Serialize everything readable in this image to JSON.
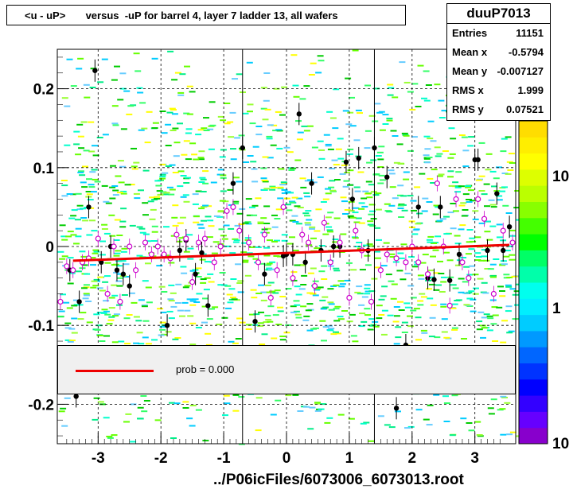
{
  "title": "<u - uP>       versus  -uP for barrel 4, layer 7 ladder 13, all wafers",
  "stats": {
    "name": "duuP7013",
    "rows": [
      {
        "key": "Entries",
        "value": "11151"
      },
      {
        "key": "Mean x",
        "value": "-0.5794"
      },
      {
        "key": "Mean y",
        "value": "-0.007127"
      },
      {
        "key": "RMS x",
        "value": "1.999"
      },
      {
        "key": "RMS y",
        "value": "0.07521"
      }
    ]
  },
  "legend": {
    "label": "prob = 0.000",
    "line_color": "#ee0000"
  },
  "footer": "../P06icFiles/6073006_6073013.root",
  "chart_data": {
    "type": "scatter",
    "title": "<u - uP>       versus  -uP for barrel 4, layer 7 ladder 13, all wafers",
    "xlabel": "",
    "ylabel": "",
    "xlim": [
      -3.65,
      3.65
    ],
    "ylim": [
      -0.25,
      0.25
    ],
    "x_ticks": [
      "-3",
      "-2",
      "-1",
      "0",
      "1",
      "2",
      "3"
    ],
    "y_ticks": [
      "0.2",
      "0.1",
      "0",
      "-0.1",
      "-0.2"
    ],
    "x_tick_values": [
      -3,
      -2,
      -1,
      0,
      1,
      2,
      3
    ],
    "y_tick_values": [
      0.2,
      0.1,
      0,
      -0.1,
      -0.2
    ],
    "grid": true,
    "log_z": true,
    "palette_labels": [
      "10",
      "1",
      "10"
    ],
    "fit_line": {
      "x": [
        -3.4,
        3.55
      ],
      "y": [
        -0.018,
        0.002
      ],
      "color": "#ee0000"
    },
    "series": [
      {
        "kind": "profile_black",
        "points": [
          [
            -3.45,
            -0.03
          ],
          [
            -3.3,
            -0.07
          ],
          [
            -3.15,
            0.05
          ],
          [
            -3.05,
            0.223
          ],
          [
            -2.95,
            -0.02
          ],
          [
            -2.8,
            -0.0
          ],
          [
            -2.7,
            -0.03
          ],
          [
            -2.6,
            -0.035
          ],
          [
            -2.5,
            -0.05
          ],
          [
            -1.9,
            -0.1
          ],
          [
            -1.7,
            -0.005
          ],
          [
            -1.6,
            0.008
          ],
          [
            -1.45,
            -0.035
          ],
          [
            -1.35,
            -0.008
          ],
          [
            -1.25,
            -0.075
          ],
          [
            -0.85,
            0.08
          ],
          [
            -0.7,
            0.125
          ],
          [
            -0.5,
            -0.095
          ],
          [
            -0.35,
            -0.035
          ],
          [
            -0.05,
            -0.012
          ],
          [
            0.0,
            -0.01
          ],
          [
            0.1,
            -0.01
          ],
          [
            0.2,
            0.168
          ],
          [
            0.3,
            -0.02
          ],
          [
            0.4,
            0.08
          ],
          [
            0.55,
            -0.005
          ],
          [
            0.75,
            0.0
          ],
          [
            0.85,
            0.0
          ],
          [
            0.95,
            0.107
          ],
          [
            1.05,
            0.06
          ],
          [
            1.15,
            0.112
          ],
          [
            1.3,
            -0.005
          ],
          [
            1.4,
            0.125
          ],
          [
            1.6,
            0.088
          ],
          [
            1.9,
            -0.125
          ],
          [
            2.1,
            0.05
          ],
          [
            2.25,
            -0.04
          ],
          [
            2.35,
            -0.042
          ],
          [
            2.45,
            0.05
          ],
          [
            2.6,
            -0.043
          ],
          [
            2.75,
            -0.01
          ],
          [
            3.0,
            0.11
          ],
          [
            3.05,
            0.11
          ],
          [
            3.2,
            -0.005
          ],
          [
            3.35,
            0.067
          ],
          [
            3.45,
            -0.005
          ],
          [
            3.55,
            0.025
          ],
          [
            1.75,
            -0.205
          ],
          [
            -3.35,
            -0.19
          ]
        ]
      },
      {
        "kind": "profile_magenta",
        "points": [
          [
            -3.6,
            -0.07
          ],
          [
            -3.5,
            -0.025
          ],
          [
            -3.4,
            -0.03
          ],
          [
            -3.25,
            -0.02
          ],
          [
            -3.15,
            -0.015
          ],
          [
            -3.0,
            0.01
          ],
          [
            -2.85,
            -0.06
          ],
          [
            -2.75,
            0.0
          ],
          [
            -2.65,
            -0.07
          ],
          [
            -2.5,
            0.0
          ],
          [
            -2.4,
            -0.03
          ],
          [
            -2.25,
            0.005
          ],
          [
            -2.15,
            -0.01
          ],
          [
            -2.05,
            0.0
          ],
          [
            -1.95,
            -0.01
          ],
          [
            -1.85,
            -0.015
          ],
          [
            -1.75,
            0.015
          ],
          [
            -1.6,
            0.01
          ],
          [
            -1.5,
            -0.045
          ],
          [
            -1.4,
            0.005
          ],
          [
            -1.3,
            0.01
          ],
          [
            -1.15,
            -0.02
          ],
          [
            -1.05,
            0.0
          ],
          [
            -0.95,
            0.045
          ],
          [
            -0.85,
            0.05
          ],
          [
            -0.75,
            0.02
          ],
          [
            -0.6,
            0.005
          ],
          [
            -0.45,
            -0.02
          ],
          [
            -0.35,
            0.015
          ],
          [
            -0.25,
            -0.065
          ],
          [
            -0.15,
            -0.03
          ],
          [
            -0.05,
            0.05
          ],
          [
            0.1,
            -0.04
          ],
          [
            0.25,
            0.015
          ],
          [
            0.35,
            0.005
          ],
          [
            0.45,
            -0.05
          ],
          [
            0.6,
            0.03
          ],
          [
            0.7,
            -0.02
          ],
          [
            0.85,
            0.005
          ],
          [
            1.0,
            -0.065
          ],
          [
            1.1,
            0.02
          ],
          [
            1.2,
            -0.005
          ],
          [
            1.35,
            -0.07
          ],
          [
            1.5,
            -0.03
          ],
          [
            1.6,
            -0.01
          ],
          [
            1.75,
            -0.015
          ],
          [
            1.9,
            -0.02
          ],
          [
            2.0,
            0.0
          ],
          [
            2.1,
            -0.02
          ],
          [
            2.25,
            -0.035
          ],
          [
            2.4,
            0.08
          ],
          [
            2.5,
            0.0
          ],
          [
            2.6,
            -0.075
          ],
          [
            2.7,
            0.06
          ],
          [
            2.8,
            -0.02
          ],
          [
            2.9,
            -0.04
          ],
          [
            3.05,
            0.06
          ],
          [
            3.15,
            0.035
          ],
          [
            3.3,
            -0.06
          ],
          [
            3.45,
            0.02
          ],
          [
            3.6,
            0.005
          ]
        ]
      }
    ]
  }
}
